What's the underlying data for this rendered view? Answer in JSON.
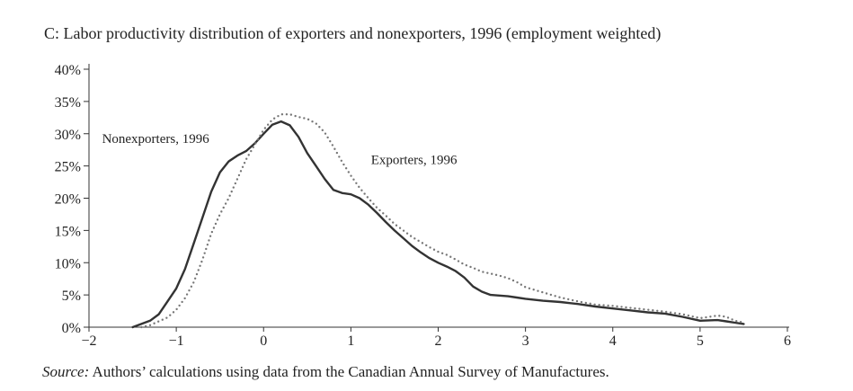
{
  "chart_data": {
    "type": "line",
    "title": "C: Labor productivity distribution of exporters and nonexporters, 1996 (employment weighted)",
    "xlabel": "",
    "ylabel": "",
    "xlim": [
      -2,
      6
    ],
    "ylim": [
      0,
      40
    ],
    "x_ticks": [
      -2,
      -1,
      0,
      1,
      2,
      3,
      4,
      5,
      6
    ],
    "x_tick_labels": [
      "−2",
      "−1",
      "0",
      "1",
      "2",
      "3",
      "4",
      "5",
      "6"
    ],
    "y_ticks": [
      0,
      5,
      10,
      15,
      20,
      25,
      30,
      35,
      40
    ],
    "y_tick_labels": [
      "0%",
      "5%",
      "10%",
      "15%",
      "20%",
      "25%",
      "30%",
      "35%",
      "40%"
    ],
    "grid": false,
    "legend": "none",
    "series": [
      {
        "name": "Nonexporters, 1996",
        "style": "solid",
        "color": "#333333",
        "x": [
          -1.5,
          -1.4,
          -1.3,
          -1.2,
          -1.1,
          -1.0,
          -0.9,
          -0.8,
          -0.7,
          -0.6,
          -0.5,
          -0.4,
          -0.3,
          -0.2,
          -0.1,
          0.0,
          0.1,
          0.2,
          0.3,
          0.4,
          0.5,
          0.6,
          0.7,
          0.8,
          0.9,
          1.0,
          1.1,
          1.2,
          1.3,
          1.4,
          1.5,
          1.6,
          1.7,
          1.8,
          1.9,
          2.0,
          2.1,
          2.2,
          2.3,
          2.4,
          2.5,
          2.6,
          2.7,
          2.8,
          2.9,
          3.0,
          3.2,
          3.4,
          3.6,
          3.8,
          4.0,
          4.2,
          4.4,
          4.6,
          4.8,
          5.0,
          5.2,
          5.3,
          5.4,
          5.5
        ],
        "y": [
          0,
          0.5,
          1,
          2,
          4,
          6,
          9,
          13,
          17,
          21,
          24,
          25.7,
          26.6,
          27.3,
          28.5,
          30,
          31.4,
          31.9,
          31.3,
          29.5,
          27,
          25,
          23,
          21.3,
          20.8,
          20.6,
          20,
          19,
          17.7,
          16.3,
          15,
          13.8,
          12.6,
          11.6,
          10.7,
          10,
          9.4,
          8.7,
          7.7,
          6.3,
          5.5,
          5.0,
          4.9,
          4.8,
          4.6,
          4.4,
          4.1,
          3.9,
          3.6,
          3.2,
          2.9,
          2.6,
          2.3,
          2.1,
          1.6,
          1.0,
          1.1,
          0.9,
          0.7,
          0.5
        ]
      },
      {
        "name": "Exporters, 1996",
        "style": "dotted",
        "color": "#777777",
        "x": [
          -1.4,
          -1.3,
          -1.2,
          -1.1,
          -1.0,
          -0.9,
          -0.8,
          -0.7,
          -0.6,
          -0.5,
          -0.4,
          -0.3,
          -0.2,
          -0.1,
          0.0,
          0.1,
          0.2,
          0.3,
          0.4,
          0.5,
          0.6,
          0.7,
          0.8,
          0.9,
          1.0,
          1.1,
          1.2,
          1.3,
          1.4,
          1.5,
          1.6,
          1.7,
          1.8,
          1.9,
          2.0,
          2.1,
          2.2,
          2.3,
          2.4,
          2.5,
          2.6,
          2.7,
          2.8,
          2.9,
          3.0,
          3.2,
          3.4,
          3.6,
          3.8,
          4.0,
          4.2,
          4.4,
          4.6,
          4.8,
          5.0,
          5.2,
          5.3,
          5.4,
          5.5
        ],
        "y": [
          0,
          0.3,
          0.9,
          1.5,
          2.7,
          4.5,
          7,
          10.5,
          14.5,
          17.5,
          20,
          23,
          26,
          28.3,
          30.6,
          32.2,
          33,
          33,
          32.6,
          32.3,
          31.6,
          30.2,
          28,
          25.6,
          23.5,
          21.6,
          20,
          18.5,
          17.3,
          16,
          15,
          14,
          13.2,
          12.4,
          11.7,
          11.2,
          10.5,
          9.7,
          9.2,
          8.6,
          8.3,
          8.0,
          7.6,
          7.0,
          6.2,
          5.4,
          4.6,
          4.0,
          3.5,
          3.3,
          3.0,
          2.7,
          2.4,
          2.0,
          1.4,
          1.8,
          1.6,
          1.0,
          0.7
        ]
      }
    ],
    "annotations": [
      {
        "text": "Nonexporters, 1996",
        "x": -1.85,
        "y": 28.6
      },
      {
        "text": "Exporters, 1996",
        "x": 1.23,
        "y": 25.3
      }
    ]
  },
  "source": {
    "prefix": "Source:",
    "text": " Authors’ calculations using data from the Canadian Annual Survey of Manufactures."
  }
}
